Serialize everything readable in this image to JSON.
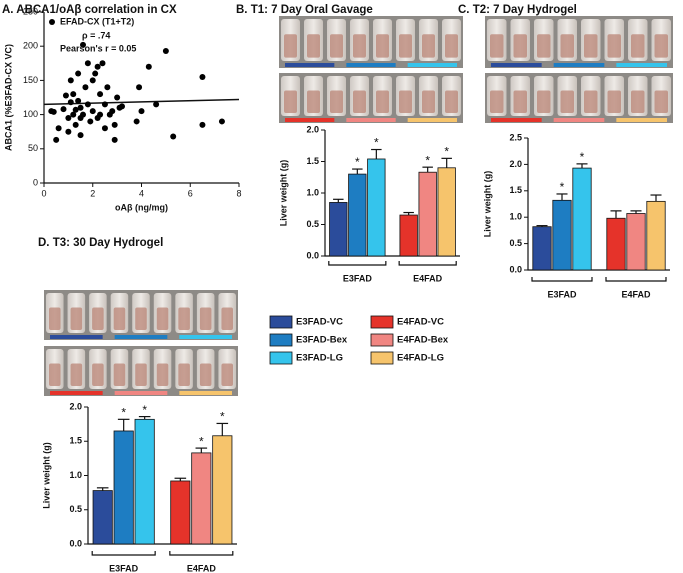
{
  "chart_data": [
    {
      "type": "scatter",
      "title": "A. ABCA1/oAβ correlation in CX",
      "x_label": "oAβ (ng/mg)",
      "y_label": "ABCA1 (%E3FAD-CX VC)",
      "legend": "EFAD-CX (T1+T2)",
      "annotations": [
        "ρ = .74",
        "Pearson's r = 0.05"
      ],
      "color": "#000000",
      "x": [
        0.3,
        0.4,
        0.5,
        0.6,
        0.8,
        0.9,
        1.0,
        1.0,
        1.1,
        1.1,
        1.2,
        1.2,
        1.3,
        1.3,
        1.4,
        1.4,
        1.5,
        1.5,
        1.6,
        1.6,
        1.7,
        1.8,
        1.8,
        1.9,
        2.0,
        2.0,
        2.1,
        2.2,
        2.2,
        2.3,
        2.3,
        2.4,
        2.5,
        2.5,
        2.6,
        2.7,
        2.8,
        2.9,
        3.0,
        3.1,
        3.2,
        3.8,
        3.9,
        4.0,
        4.3,
        4.6,
        5.0,
        5.3,
        6.5,
        6.5,
        7.3,
        2.9,
        1.5
      ],
      "values": [
        105,
        104,
        63,
        80,
        108,
        128,
        95,
        75,
        150,
        118,
        130,
        100,
        107,
        85,
        160,
        120,
        110,
        95,
        202,
        100,
        140,
        175,
        115,
        90,
        150,
        105,
        160,
        170,
        95,
        130,
        100,
        175,
        115,
        80,
        140,
        100,
        105,
        63,
        125,
        110,
        112,
        90,
        140,
        105,
        170,
        115,
        193,
        68,
        155,
        85,
        90,
        85,
        70
      ],
      "trendline": {
        "x": [
          0,
          8
        ],
        "y": [
          115,
          122
        ]
      },
      "xlim": [
        0,
        8
      ],
      "xticks": [
        0,
        2,
        4,
        6,
        8
      ],
      "ylim": [
        0,
        250
      ],
      "yticks": [
        0,
        50,
        100,
        150,
        200,
        250
      ]
    },
    {
      "type": "bar",
      "title": "B. T1: 7 Day Oral Gavage",
      "y_label": "Liver weight (g)",
      "categories": [
        "E3FAD-VC",
        "E3FAD-Bex",
        "E3FAD-LG",
        "E4FAD-VC",
        "E4FAD-Bex",
        "E4FAD-LG"
      ],
      "colors": [
        "#2b4c9b",
        "#1e7dc2",
        "#35c4ec",
        "#e5332a",
        "#f08682",
        "#f6c46c"
      ],
      "values": [
        0.85,
        1.3,
        1.54,
        0.65,
        1.33,
        1.4
      ],
      "errors": [
        0.05,
        0.08,
        0.15,
        0.04,
        0.08,
        0.15
      ],
      "annotations": [
        null,
        "*",
        "*",
        null,
        "*",
        "*"
      ],
      "groups": [
        "E3FAD",
        "E4FAD"
      ],
      "ylim": [
        0,
        2.0
      ],
      "yticks": [
        {
          "value": 0,
          "label": "0.0"
        },
        0.5,
        {
          "value": 1,
          "label": "1.0"
        },
        1.5,
        {
          "value": 2,
          "label": "2.0"
        }
      ]
    },
    {
      "type": "bar",
      "title": "C. T2: 7 Day Hydrogel",
      "y_label": "Liver weight (g)",
      "categories": [
        "E3FAD-VC",
        "E3FAD-Bex",
        "E3FAD-LG",
        "E4FAD-VC",
        "E4FAD-Bex",
        "E4FAD-LG"
      ],
      "colors": [
        "#2b4c9b",
        "#1e7dc2",
        "#35c4ec",
        "#e5332a",
        "#f08682",
        "#f6c46c"
      ],
      "values": [
        0.82,
        1.32,
        1.93,
        0.98,
        1.07,
        1.3
      ],
      "errors": [
        0.02,
        0.12,
        0.08,
        0.14,
        0.05,
        0.12
      ],
      "annotations": [
        null,
        "*",
        "*",
        null,
        null,
        null
      ],
      "groups": [
        "E3FAD",
        "E4FAD"
      ],
      "ylim": [
        0,
        2.5
      ],
      "yticks": [
        {
          "value": 0,
          "label": "0.0"
        },
        0.5,
        {
          "value": 1,
          "label": "1.0"
        },
        1.5,
        {
          "value": 2,
          "label": "2.0"
        },
        2.5
      ]
    },
    {
      "type": "bar",
      "title": "D. T3: 30 Day Hydrogel",
      "y_label": "Liver weight (g)",
      "categories": [
        "E3FAD-VC",
        "E3FAD-Bex",
        "E3FAD-LG",
        "E4FAD-VC",
        "E4FAD-Bex",
        "E4FAD-LG"
      ],
      "colors": [
        "#2b4c9b",
        "#1e7dc2",
        "#35c4ec",
        "#e5332a",
        "#f08682",
        "#f6c46c"
      ],
      "values": [
        0.78,
        1.65,
        1.82,
        0.92,
        1.33,
        1.58
      ],
      "errors": [
        0.04,
        0.17,
        0.04,
        0.04,
        0.07,
        0.18
      ],
      "annotations": [
        null,
        "*",
        "*",
        null,
        "*",
        "*"
      ],
      "groups": [
        "E3FAD",
        "E4FAD"
      ],
      "ylim": [
        0,
        2.0
      ],
      "yticks": [
        {
          "value": 0,
          "label": "0.0"
        },
        0.5,
        {
          "value": 1,
          "label": "1.0"
        },
        1.5,
        {
          "value": 2,
          "label": "2.0"
        }
      ]
    }
  ]
}
